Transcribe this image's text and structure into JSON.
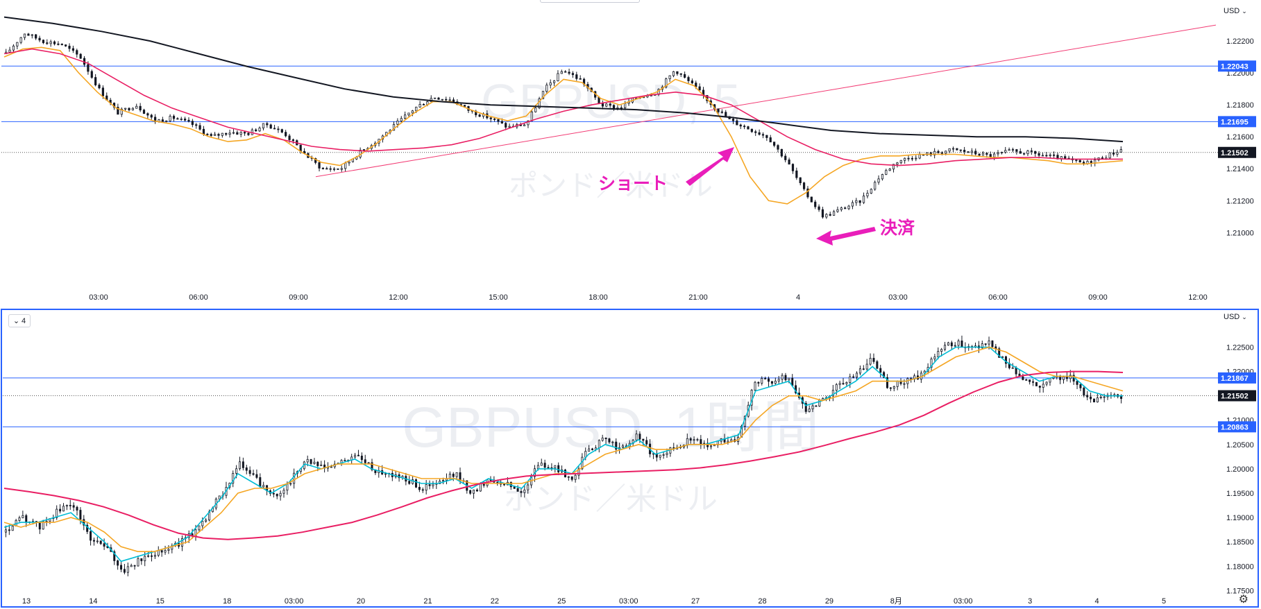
{
  "charts": [
    {
      "chart_data": {
        "type": "candlestick",
        "title": "",
        "watermark": {
          "symbol": "GBPUSD, 5",
          "description": "ポンド／米ドル"
        },
        "currency": "USD",
        "y_axis": {
          "ticks": [
            "1.22200",
            "1.22000",
            "1.21800",
            "1.21600",
            "1.21400",
            "1.21200",
            "1.21000"
          ],
          "range": [
            1.2091,
            1.2237
          ]
        },
        "x_axis": {
          "ticks": [
            "03:00",
            "06:00",
            "09:00",
            "12:00",
            "15:00",
            "18:00",
            "21:00",
            "4",
            "03:00",
            "06:00",
            "09:00",
            "12:00"
          ]
        },
        "price_line": {
          "value": 1.21502,
          "label": "1.21502",
          "color": "#131722"
        },
        "horizontal_levels": [
          {
            "value": 1.22043,
            "label": "1.22043",
            "color": "#2962ff"
          },
          {
            "value": 1.21695,
            "label": "1.21695",
            "color": "#2962ff"
          }
        ],
        "trendline": {
          "from": {
            "time": "09:20",
            "price": 1.2135
          },
          "to": {
            "time": "12:30 (4)",
            "price": 1.223
          },
          "color": "#f23a73"
        },
        "series": [
          {
            "name": "",
            "role": "price",
            "close": [
              1.2212,
              1.2225,
              1.222,
              1.2218,
              1.221,
              1.219,
              1.2175,
              1.218,
              1.217,
              1.2172,
              1.2168,
              1.216,
              1.2163,
              1.2162,
              1.2168,
              1.2162,
              1.215,
              1.214,
              1.214,
              1.215,
              1.2158,
              1.2168,
              1.2178,
              1.2185,
              1.2183,
              1.2176,
              1.2172,
              1.2166,
              1.2168,
              1.219,
              1.2202,
              1.2195,
              1.218,
              1.2178,
              1.2185,
              1.2188,
              1.2202,
              1.2192,
              1.218,
              1.217,
              1.2165,
              1.216,
              1.2145,
              1.2125,
              1.211,
              1.2115,
              1.212,
              1.2135,
              1.2145,
              1.2148,
              1.215,
              1.2152,
              1.215,
              1.2148,
              1.2151,
              1.215,
              1.2148,
              1.2146,
              1.2143,
              1.2147,
              1.2152
            ]
          },
          {
            "name": "",
            "role": "ma-fast",
            "color": "#f5a623",
            "values": [
              1.221,
              1.2215,
              1.2216,
              1.2214,
              1.22,
              1.2188,
              1.2178,
              1.2174,
              1.217,
              1.2168,
              1.2165,
              1.216,
              1.2157,
              1.2158,
              1.2162,
              1.2158,
              1.215,
              1.2144,
              1.2142,
              1.2148,
              1.2156,
              1.2166,
              1.2175,
              1.2182,
              1.2182,
              1.2177,
              1.2173,
              1.217,
              1.2173,
              1.2186,
              1.2196,
              1.2194,
              1.2184,
              1.218,
              1.2184,
              1.2188,
              1.2196,
              1.2192,
              1.218,
              1.216,
              1.2135,
              1.212,
              1.2118,
              1.2125,
              1.2135,
              1.2142,
              1.2146,
              1.2148,
              1.2148,
              1.2149,
              1.2149,
              1.2149,
              1.2148,
              1.2147,
              1.2147,
              1.2146,
              1.2145,
              1.2143,
              1.2143,
              1.2144,
              1.2145
            ]
          },
          {
            "name": "",
            "role": "ma-mid",
            "color": "#e91e63",
            "values": [
              1.2212,
              1.2215,
              1.2212,
              1.2206,
              1.2196,
              1.2186,
              1.2178,
              1.2172,
              1.2166,
              1.2162,
              1.2158,
              1.2154,
              1.2152,
              1.2151,
              1.2152,
              1.2153,
              1.2155,
              1.2159,
              1.2165,
              1.2171,
              1.2176,
              1.218,
              1.2183,
              1.2186,
              1.2188,
              1.2186,
              1.218,
              1.217,
              1.216,
              1.2152,
              1.2146,
              1.2143,
              1.2142,
              1.2143,
              1.2145,
              1.2146,
              1.2147,
              1.2147,
              1.2146,
              1.2146,
              1.2146
            ]
          },
          {
            "name": "",
            "role": "ma-slow",
            "color": "#131722",
            "values": [
              1.2235,
              1.2231,
              1.2226,
              1.222,
              1.2212,
              1.2204,
              1.2197,
              1.219,
              1.2185,
              1.2182,
              1.218,
              1.2179,
              1.2178,
              1.2177,
              1.2175,
              1.2172,
              1.2168,
              1.2164,
              1.2162,
              1.2161,
              1.216,
              1.216,
              1.2159,
              1.2157
            ]
          }
        ],
        "annotations": [
          {
            "text": "ショート",
            "color": "#e91eba",
            "arrow": "up-right"
          },
          {
            "text": "決済",
            "color": "#e91eba",
            "arrow": "left"
          }
        ]
      }
    },
    {
      "chart_data": {
        "type": "candlestick",
        "title": "",
        "watermark": {
          "symbol": "GBPUSD, 1時間",
          "description": "ポンド／米ドル"
        },
        "currency": "USD",
        "y_axis": {
          "ticks": [
            "1.22500",
            "1.22000",
            "1.21500",
            "1.21000",
            "1.20500",
            "1.20000",
            "1.19500",
            "1.19000",
            "1.18500",
            "1.18000",
            "1.17500"
          ],
          "range": [
            1.1732,
            1.2292
          ]
        },
        "x_axis": {
          "ticks": [
            "13",
            "14",
            "15",
            "18",
            "03:00",
            "20",
            "21",
            "22",
            "25",
            "03:00",
            "27",
            "28",
            "29",
            "8月",
            "03:00",
            "3",
            "4",
            "5"
          ]
        },
        "price_line": {
          "value": 1.21502,
          "label": "1.21502",
          "color": "#131722"
        },
        "horizontal_levels": [
          {
            "value": 1.21867,
            "label": "1.21867",
            "color": "#2962ff"
          },
          {
            "value": 1.20863,
            "label": "1.20863",
            "color": "#2962ff"
          }
        ],
        "series": [
          {
            "name": "",
            "role": "price",
            "close": [
              1.187,
              1.19,
              1.188,
              1.191,
              1.193,
              1.186,
              1.184,
              1.179,
              1.181,
              1.183,
              1.184,
              1.186,
              1.19,
              1.195,
              1.201,
              1.198,
              1.194,
              1.197,
              1.202,
              1.2,
              1.201,
              1.203,
              1.2,
              1.199,
              1.198,
              1.196,
              1.197,
              1.199,
              1.195,
              1.198,
              1.197,
              1.195,
              1.201,
              1.2,
              1.198,
              1.204,
              1.206,
              1.204,
              1.207,
              1.202,
              1.204,
              1.206,
              1.205,
              1.206,
              1.206,
              1.218,
              1.218,
              1.219,
              1.212,
              1.214,
              1.217,
              1.219,
              1.223,
              1.217,
              1.218,
              1.219,
              1.224,
              1.226,
              1.225,
              1.226,
              1.222,
              1.219,
              1.217,
              1.219,
              1.219,
              1.214,
              1.215,
              1.215
            ]
          },
          {
            "name": "",
            "role": "ma-fast",
            "color": "#00bcd4",
            "values": [
              1.188,
              1.189,
              1.189,
              1.19,
              1.191,
              1.188,
              1.185,
              1.181,
              1.182,
              1.183,
              1.184,
              1.186,
              1.19,
              1.194,
              1.199,
              1.197,
              1.195,
              1.197,
              1.201,
              1.2,
              1.201,
              1.202,
              1.2,
              1.199,
              1.198,
              1.197,
              1.197,
              1.198,
              1.196,
              1.198,
              1.197,
              1.196,
              1.2,
              1.2,
              1.199,
              1.203,
              1.205,
              1.204,
              1.206,
              1.203,
              1.204,
              1.205,
              1.205,
              1.206,
              1.207,
              1.216,
              1.217,
              1.218,
              1.213,
              1.214,
              1.216,
              1.218,
              1.221,
              1.218,
              1.218,
              1.219,
              1.223,
              1.225,
              1.225,
              1.225,
              1.222,
              1.22,
              1.218,
              1.219,
              1.219,
              1.216,
              1.215,
              1.215
            ]
          },
          {
            "name": "",
            "role": "ma-mid",
            "color": "#f5a623",
            "values": [
              1.189,
              1.188,
              1.189,
              1.189,
              1.19,
              1.189,
              1.187,
              1.184,
              1.183,
              1.183,
              1.184,
              1.185,
              1.188,
              1.191,
              1.195,
              1.196,
              1.196,
              1.197,
              1.199,
              1.2,
              1.201,
              1.201,
              1.201,
              1.2,
              1.199,
              1.198,
              1.198,
              1.198,
              1.197,
              1.197,
              1.197,
              1.197,
              1.198,
              1.199,
              1.199,
              1.201,
              1.203,
              1.204,
              1.205,
              1.204,
              1.204,
              1.205,
              1.205,
              1.205,
              1.206,
              1.21,
              1.213,
              1.215,
              1.215,
              1.214,
              1.215,
              1.216,
              1.218,
              1.218,
              1.218,
              1.219,
              1.221,
              1.223,
              1.224,
              1.225,
              1.224,
              1.222,
              1.22,
              1.219,
              1.219,
              1.218,
              1.217,
              1.216
            ]
          },
          {
            "name": "",
            "role": "ma-slow",
            "color": "#e91e63",
            "values": [
              1.196,
              1.1953,
              1.1945,
              1.1935,
              1.1922,
              1.1905,
              1.1885,
              1.1868,
              1.1858,
              1.1855,
              1.1858,
              1.1862,
              1.187,
              1.188,
              1.189,
              1.1905,
              1.1922,
              1.194,
              1.1955,
              1.1968,
              1.1978,
              1.1985,
              1.1988,
              1.199,
              1.1992,
              1.1994,
              1.1996,
              1.1998,
              1.2002,
              1.2008,
              1.2016,
              1.2025,
              1.2035,
              1.2048,
              1.2062,
              1.2075,
              1.209,
              1.211,
              1.2135,
              1.2158,
              1.2178,
              1.2192,
              1.2198,
              1.22,
              1.22,
              1.2198
            ]
          }
        ]
      }
    }
  ],
  "ui": {
    "currency_label_1": "USD",
    "currency_label_2": "USD",
    "caret": "⌄",
    "legend_count": "4",
    "legend_chevron": "⌄",
    "gear_glyph": "⚙"
  }
}
